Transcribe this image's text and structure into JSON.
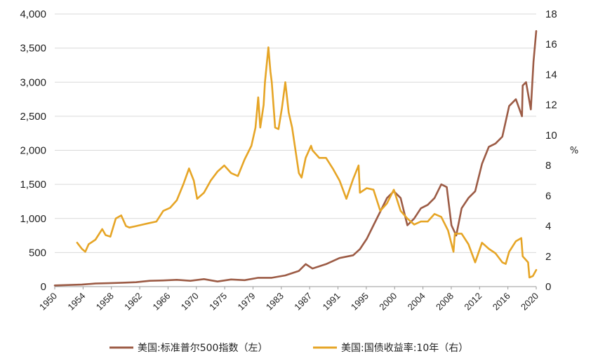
{
  "chart_data": {
    "type": "line",
    "title": "",
    "xlabel": "",
    "ylabel_left": "",
    "ylabel_right": "%",
    "x_tick_labels": [
      "1950",
      "1954",
      "1958",
      "1962",
      "1966",
      "1970",
      "1975",
      "1979",
      "1983",
      "1987",
      "1991",
      "1995",
      "2000",
      "2004",
      "2008",
      "2012",
      "2016",
      "2020"
    ],
    "xlim": [
      1950,
      2021
    ],
    "ylim_left": [
      0,
      4000
    ],
    "ylim_right": [
      0,
      18
    ],
    "y_ticks_left": [
      "0",
      "500",
      "1,000",
      "1,500",
      "2,000",
      "2,500",
      "3,000",
      "3,500",
      "4,000"
    ],
    "y_ticks_right": [
      "0",
      "2",
      "4",
      "6",
      "8",
      "10",
      "12",
      "14",
      "16",
      "18"
    ],
    "grid": true,
    "legend_position": "bottom",
    "colors": {
      "sp500": "#9c5b45",
      "yield10y": "#e6a526"
    },
    "series": [
      {
        "name": "美国:标准普尔500指数（左）",
        "axis": "left",
        "x": [
          1950,
          1952,
          1954,
          1956,
          1958,
          1960,
          1962,
          1964,
          1966,
          1968,
          1970,
          1972,
          1974,
          1976,
          1978,
          1980,
          1982,
          1984,
          1986,
          1987,
          1988,
          1990,
          1992,
          1994,
          1995,
          1996,
          1997,
          1998,
          1999,
          2000,
          2001,
          2002,
          2003,
          2004,
          2005,
          2006,
          2007,
          2007.8,
          2008.5,
          2009.2,
          2010,
          2011,
          2012,
          2013,
          2014,
          2015,
          2016,
          2017,
          2018,
          2018.9,
          2019,
          2019.5,
          2020.2,
          2020.6,
          2021
        ],
        "y": [
          17,
          24,
          30,
          45,
          50,
          58,
          65,
          85,
          90,
          100,
          85,
          110,
          75,
          105,
          95,
          130,
          130,
          165,
          230,
          330,
          265,
          330,
          420,
          460,
          550,
          700,
          900,
          1100,
          1300,
          1400,
          1300,
          900,
          1000,
          1150,
          1200,
          1300,
          1500,
          1460,
          900,
          750,
          1150,
          1300,
          1400,
          1800,
          2050,
          2100,
          2200,
          2650,
          2750,
          2500,
          2950,
          3000,
          2600,
          3300,
          3750
        ]
      },
      {
        "name": "美国:国债收益率:10年（右）",
        "axis": "right",
        "x": [
          1953.3,
          1954,
          1954.5,
          1955,
          1956,
          1957,
          1957.5,
          1958.2,
          1959,
          1959.8,
          1960.5,
          1961,
          1962,
          1963,
          1964,
          1965,
          1966,
          1967,
          1968,
          1969,
          1969.8,
          1970.5,
          1971,
          1972,
          1973,
          1974,
          1975,
          1976,
          1977,
          1978,
          1979,
          1979.6,
          1980,
          1980.3,
          1980.8,
          1981,
          1981.5,
          1981.8,
          1982,
          1982.5,
          1983,
          1983.5,
          1984,
          1984.5,
          1985,
          1986,
          1986.4,
          1987,
          1987.8,
          1988,
          1989,
          1990,
          1991,
          1992,
          1993,
          1994,
          1994.8,
          1995,
          1996,
          1997,
          1998,
          1999,
          2000,
          2001,
          2002,
          2003,
          2004,
          2005,
          2006,
          2007,
          2008,
          2008.8,
          2009,
          2010,
          2011,
          2012,
          2013,
          2014,
          2015,
          2016,
          2016.5,
          2017,
          2018,
          2018.8,
          2019,
          2019.8,
          2020,
          2020.5,
          2021
        ],
        "y": [
          2.9,
          2.5,
          2.3,
          2.8,
          3.1,
          3.8,
          3.4,
          3.3,
          4.5,
          4.7,
          4.0,
          3.9,
          4.0,
          4.1,
          4.2,
          4.3,
          5.0,
          5.2,
          5.7,
          6.8,
          7.8,
          7.0,
          5.8,
          6.2,
          7.0,
          7.6,
          8.0,
          7.5,
          7.3,
          8.4,
          9.3,
          10.5,
          12.5,
          10.5,
          12.0,
          13.5,
          15.8,
          14.2,
          13.5,
          10.5,
          10.4,
          11.8,
          13.5,
          11.5,
          10.5,
          7.5,
          7.2,
          8.5,
          9.3,
          9.0,
          8.5,
          8.5,
          7.8,
          7.0,
          5.8,
          7.1,
          8.0,
          6.2,
          6.5,
          6.4,
          5.0,
          5.5,
          6.4,
          5.0,
          4.5,
          4.1,
          4.3,
          4.3,
          4.8,
          4.6,
          3.7,
          2.3,
          3.5,
          3.5,
          2.8,
          1.6,
          2.9,
          2.5,
          2.2,
          1.6,
          1.5,
          2.3,
          3.0,
          3.2,
          2.0,
          1.6,
          0.6,
          0.7,
          1.1
        ]
      }
    ]
  },
  "legend": {
    "items": [
      {
        "label": "美国:标准普尔500指数（左）"
      },
      {
        "label": "美国:国债收益率:10年（右）"
      }
    ]
  }
}
